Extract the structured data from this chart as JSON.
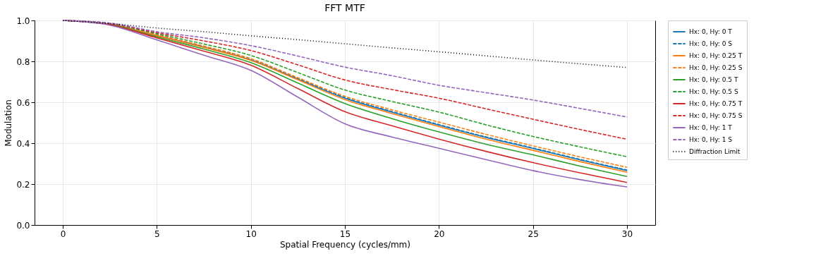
{
  "chart_data": {
    "type": "line",
    "title": "FFT MTF",
    "xlabel": "Spatial Frequency (cycles/mm)",
    "ylabel": "Modulation",
    "x": [
      0,
      2.5,
      5,
      7.5,
      10,
      12.5,
      15,
      17.5,
      20,
      22.5,
      25,
      27.5,
      30
    ],
    "xlim": [
      -1.5,
      31.5
    ],
    "xticks": [
      0,
      5,
      10,
      15,
      20,
      25,
      30
    ],
    "ylim": [
      0,
      1
    ],
    "yticks": [
      {
        "value": 0,
        "label": "0.0"
      },
      {
        "value": 0.2,
        "label": "0.2"
      },
      {
        "value": 0.4,
        "label": "0.4"
      },
      {
        "value": 0.6,
        "label": "0.6"
      },
      {
        "value": 0.8,
        "label": "0.8"
      },
      {
        "value": 1,
        "label": "1.0"
      }
    ],
    "grid": true,
    "legend": "right",
    "marker": "none",
    "series": [
      {
        "name": "Hx: 0, Hy: 0 T",
        "color": "#1f77b4",
        "line_style": "solid",
        "values": [
          1,
          0.982,
          0.926,
          0.87,
          0.807,
          0.713,
          0.62,
          0.552,
          0.488,
          0.428,
          0.374,
          0.318,
          0.266
        ]
      },
      {
        "name": "Hx: 0, Hy: 0 S",
        "color": "#1f77b4",
        "line_style": "dashed",
        "values": [
          1,
          0.982,
          0.927,
          0.871,
          0.809,
          0.716,
          0.623,
          0.555,
          0.491,
          0.431,
          0.377,
          0.321,
          0.269
        ]
      },
      {
        "name": "Hx: 0, Hy: 0.25 T",
        "color": "#ff7f0e",
        "line_style": "solid",
        "values": [
          1,
          0.981,
          0.925,
          0.868,
          0.805,
          0.71,
          0.613,
          0.545,
          0.481,
          0.42,
          0.365,
          0.31,
          0.258
        ]
      },
      {
        "name": "Hx: 0, Hy: 0.25 S",
        "color": "#ff7f0e",
        "line_style": "dashed",
        "values": [
          1,
          0.983,
          0.93,
          0.875,
          0.813,
          0.72,
          0.629,
          0.563,
          0.503,
          0.443,
          0.387,
          0.333,
          0.282
        ]
      },
      {
        "name": "Hx: 0, Hy: 0.5 T",
        "color": "#2ca02c",
        "line_style": "solid",
        "values": [
          1,
          0.98,
          0.92,
          0.86,
          0.794,
          0.694,
          0.594,
          0.52,
          0.455,
          0.395,
          0.343,
          0.288,
          0.237
        ]
      },
      {
        "name": "Hx: 0, Hy: 0.5 S",
        "color": "#2ca02c",
        "line_style": "dashed",
        "values": [
          1,
          0.984,
          0.935,
          0.885,
          0.829,
          0.745,
          0.66,
          0.604,
          0.552,
          0.49,
          0.433,
          0.382,
          0.334
        ]
      },
      {
        "name": "Hx: 0, Hy: 0.75 T",
        "color": "#d62728",
        "line_style": "solid",
        "values": [
          1,
          0.979,
          0.915,
          0.85,
          0.781,
          0.667,
          0.554,
          0.485,
          0.42,
          0.36,
          0.305,
          0.255,
          0.208
        ]
      },
      {
        "name": "Hx: 0, Hy: 0.75 S",
        "color": "#d62728",
        "line_style": "dashed",
        "values": [
          1,
          0.985,
          0.94,
          0.9,
          0.853,
          0.783,
          0.709,
          0.662,
          0.62,
          0.568,
          0.517,
          0.467,
          0.419
        ]
      },
      {
        "name": "Hx: 0, Hy: 1 T",
        "color": "#9467bd",
        "line_style": "solid",
        "values": [
          1,
          0.977,
          0.905,
          0.83,
          0.756,
          0.625,
          0.495,
          0.43,
          0.375,
          0.32,
          0.266,
          0.222,
          0.186
        ]
      },
      {
        "name": "Hx: 0, Hy: 1 S",
        "color": "#9467bd",
        "line_style": "dashed",
        "values": [
          1,
          0.987,
          0.945,
          0.915,
          0.877,
          0.826,
          0.772,
          0.73,
          0.683,
          0.647,
          0.611,
          0.57,
          0.528
        ]
      },
      {
        "name": "Diffraction Limit",
        "color": "#000000",
        "line_style": "dotted",
        "values": [
          1,
          0.985,
          0.963,
          0.945,
          0.925,
          0.906,
          0.886,
          0.866,
          0.847,
          0.827,
          0.807,
          0.788,
          0.77
        ]
      }
    ]
  }
}
